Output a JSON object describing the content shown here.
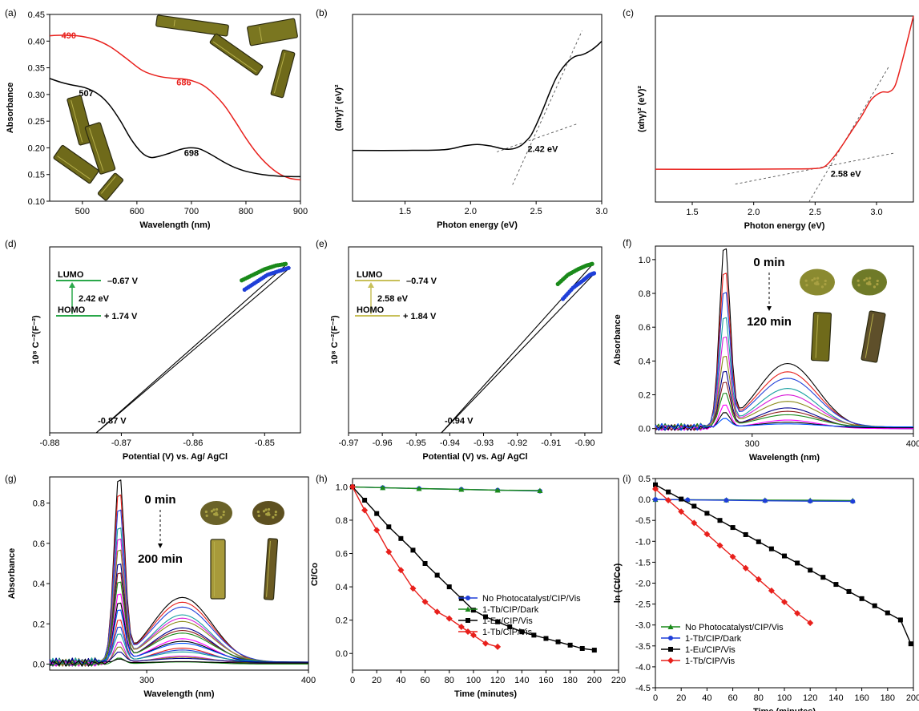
{
  "chart_data": [
    {
      "id": "a",
      "panel_label": "(a)",
      "type": "line",
      "xlabel": "Wavelength (nm)",
      "ylabel": "Absorbance",
      "xlim": [
        440,
        900
      ],
      "ylim": [
        0.1,
        0.45
      ],
      "xticks": [
        "500",
        "600",
        "700",
        "800",
        "900"
      ],
      "yticks": [
        "0.10",
        "0.15",
        "0.20",
        "0.25",
        "0.30",
        "0.35",
        "0.40",
        "0.45"
      ],
      "series": [
        {
          "color": "#e8201c",
          "x": [
            440,
            460,
            490,
            520,
            550,
            580,
            610,
            640,
            670,
            686,
            700,
            720,
            740,
            760,
            780,
            800,
            820,
            840,
            860,
            880,
            900
          ],
          "y": [
            0.41,
            0.411,
            0.41,
            0.404,
            0.39,
            0.368,
            0.345,
            0.334,
            0.33,
            0.329,
            0.326,
            0.318,
            0.302,
            0.28,
            0.25,
            0.218,
            0.19,
            0.168,
            0.152,
            0.143,
            0.14
          ]
        },
        {
          "color": "#000000",
          "x": [
            440,
            460,
            480,
            507,
            530,
            550,
            570,
            590,
            610,
            625,
            640,
            660,
            680,
            698,
            715,
            735,
            760,
            780,
            800,
            830,
            860,
            900
          ],
          "y": [
            0.33,
            0.323,
            0.318,
            0.312,
            0.3,
            0.28,
            0.25,
            0.215,
            0.19,
            0.182,
            0.184,
            0.19,
            0.197,
            0.2,
            0.198,
            0.188,
            0.173,
            0.163,
            0.156,
            0.15,
            0.147,
            0.146
          ]
        }
      ],
      "annotations": [
        {
          "text": "490",
          "x": 475,
          "y": 0.405,
          "color": "#e8201c"
        },
        {
          "text": "686",
          "x": 686,
          "y": 0.317,
          "color": "#e8201c"
        },
        {
          "text": "507",
          "x": 507,
          "y": 0.297,
          "color": "#000000"
        },
        {
          "text": "698",
          "x": 700,
          "y": 0.185,
          "color": "#000000"
        }
      ]
    },
    {
      "id": "b",
      "panel_label": "(b)",
      "type": "line",
      "xlabel": "Photon energy (eV)",
      "ylabel": "(αhγ)² (eV)²",
      "xlim": [
        1.1,
        3.0
      ],
      "ylim": [
        0,
        1.25
      ],
      "xticks": [
        "1.5",
        "2.0",
        "2.5",
        "3.0"
      ],
      "series": [
        {
          "color": "#000000",
          "x": [
            1.1,
            1.5,
            1.8,
            1.95,
            2.05,
            2.15,
            2.25,
            2.32,
            2.38,
            2.42,
            2.46,
            2.5,
            2.55,
            2.6,
            2.65,
            2.7,
            2.75,
            2.8,
            2.85,
            2.9,
            2.95,
            3.0
          ],
          "y": [
            0.34,
            0.34,
            0.345,
            0.37,
            0.38,
            0.37,
            0.35,
            0.35,
            0.37,
            0.4,
            0.44,
            0.51,
            0.61,
            0.72,
            0.82,
            0.89,
            0.94,
            0.97,
            0.98,
            1.0,
            1.03,
            1.07
          ]
        }
      ],
      "fit_lines": [
        {
          "x": [
            2.2,
            2.82
          ],
          "y": [
            0.33,
            0.52
          ]
        },
        {
          "x": [
            2.32,
            2.85
          ],
          "y": [
            0.11,
            1.14
          ]
        }
      ],
      "annotations": [
        {
          "text": "2.42 eV",
          "x": 2.55,
          "y": 0.33
        }
      ]
    },
    {
      "id": "c",
      "panel_label": "(c)",
      "type": "line",
      "xlabel": "Photon energy (eV)",
      "ylabel": "(αhγ)² (eV)²",
      "xlim": [
        1.2,
        3.3
      ],
      "ylim": [
        0,
        1.25
      ],
      "xticks": [
        "1.5",
        "2.0",
        "2.5",
        "3.0"
      ],
      "series": [
        {
          "color": "#e8201c",
          "x": [
            1.2,
            1.8,
            2.3,
            2.5,
            2.58,
            2.65,
            2.72,
            2.8,
            2.88,
            2.95,
            3.0,
            3.05,
            3.1,
            3.15,
            3.2,
            3.25,
            3.3
          ],
          "y": [
            0.22,
            0.22,
            0.222,
            0.225,
            0.24,
            0.3,
            0.38,
            0.48,
            0.58,
            0.68,
            0.72,
            0.74,
            0.74,
            0.78,
            0.92,
            1.08,
            1.25
          ]
        }
      ],
      "fit_lines": [
        {
          "x": [
            1.85,
            3.15
          ],
          "y": [
            0.12,
            0.33
          ]
        },
        {
          "x": [
            2.45,
            3.1
          ],
          "y": [
            0.0,
            0.91
          ]
        }
      ],
      "annotations": [
        {
          "text": "2.58 eV",
          "x": 2.75,
          "y": 0.17
        }
      ]
    },
    {
      "id": "d",
      "panel_label": "(d)",
      "type": "line",
      "xlabel": "Potential (V) vs. Ag/ AgCl",
      "ylabel": "10⁸ C⁻²(F⁻²)",
      "xlim": [
        -0.88,
        -0.845
      ],
      "ylim": [
        0,
        1
      ],
      "xticks": [
        "-0.88",
        "-0.87",
        "-0.86",
        "-0.85"
      ],
      "series": [
        {
          "color": "#1a8a1a",
          "x": [
            -0.8532,
            -0.8516,
            -0.85,
            -0.8484,
            -0.8468
          ],
          "y": [
            0.82,
            0.85,
            0.88,
            0.9,
            0.91
          ]
        },
        {
          "color": "#1f3fd8",
          "x": [
            -0.8528,
            -0.8512,
            -0.8496,
            -0.848,
            -0.8464
          ],
          "y": [
            0.77,
            0.81,
            0.85,
            0.87,
            0.89
          ]
        }
      ],
      "fit_lines": [
        {
          "x": [
            -0.8735,
            -0.8468
          ],
          "y": [
            0.0,
            0.91
          ]
        },
        {
          "x": [
            -0.8735,
            -0.8464
          ],
          "y": [
            0.0,
            0.89
          ]
        }
      ],
      "annotations": [
        {
          "text": "-0.87 V",
          "x": -0.8735,
          "y": 0.05
        },
        {
          "text": "LUMO",
          "x": -0.8775,
          "y": 0.82
        },
        {
          "text": "–0.67 V",
          "x": -0.8738,
          "y": 0.8
        },
        {
          "text": "2.42 eV",
          "x": -0.876,
          "y": 0.72
        },
        {
          "text": "HOMO",
          "x": -0.8775,
          "y": 0.66
        },
        {
          "text": "+ 1.74 V",
          "x": -0.874,
          "y": 0.62
        }
      ]
    },
    {
      "id": "e",
      "panel_label": "(e)",
      "type": "line",
      "xlabel": "Potential (V) vs. Ag/ AgCl",
      "ylabel": "10⁸ C⁻²(F⁻²)",
      "xlim": [
        -0.97,
        -0.895
      ],
      "ylim": [
        0,
        1
      ],
      "xticks": [
        "-0.97",
        "-0.96",
        "-0.95",
        "-0.94",
        "-0.93",
        "-0.92",
        "-0.91",
        "-0.90"
      ],
      "series": [
        {
          "color": "#1a8a1a",
          "x": [
            -0.908,
            -0.905,
            -0.902,
            -0.8995,
            -0.8975
          ],
          "y": [
            0.8,
            0.85,
            0.88,
            0.9,
            0.91
          ]
        },
        {
          "color": "#1f3fd8",
          "x": [
            -0.9065,
            -0.9035,
            -0.9005,
            -0.8985,
            -0.897
          ],
          "y": [
            0.72,
            0.78,
            0.82,
            0.85,
            0.86
          ]
        }
      ],
      "fit_lines": [
        {
          "x": [
            -0.9425,
            -0.8975
          ],
          "y": [
            0.0,
            0.91
          ]
        },
        {
          "x": [
            -0.9425,
            -0.897
          ],
          "y": [
            0.0,
            0.86
          ]
        }
      ],
      "annotations": [
        {
          "text": "-0.94 V",
          "x": -0.942,
          "y": 0.05
        },
        {
          "text": "LUMO",
          "x": -0.9665,
          "y": 0.82
        },
        {
          "text": "–0.74 V",
          "x": -0.958,
          "y": 0.8
        },
        {
          "text": "2.58 eV",
          "x": -0.962,
          "y": 0.72
        },
        {
          "text": "HOMO",
          "x": -0.9665,
          "y": 0.64
        },
        {
          "text": "+ 1.84 V",
          "x": -0.958,
          "y": 0.6
        }
      ]
    },
    {
      "id": "f",
      "panel_label": "(f)",
      "type": "line",
      "xlabel": "Wavelength (nm)",
      "ylabel": "Absorbance",
      "xlim": [
        240,
        400
      ],
      "ylim": [
        -0.03,
        1.08
      ],
      "xticks": [
        "300",
        "400"
      ],
      "yticks": [
        "0.0",
        "0.2",
        "0.4",
        "0.6",
        "0.8",
        "1.0"
      ],
      "peak_values": [
        1.07,
        0.92,
        0.8,
        0.66,
        0.54,
        0.42,
        0.34,
        0.27,
        0.2,
        0.14,
        0.09,
        0.05
      ],
      "series_colors": [
        "#000000",
        "#e8201c",
        "#1f3fd8",
        "#17a0a0",
        "#d81ad8",
        "#8a8a1a",
        "#00008b",
        "#8b1a1a",
        "#1a8a1a",
        "#ff00ff",
        "#000000",
        "#0050ff"
      ],
      "annotations": [
        {
          "text": "0 min"
        },
        {
          "text": "120 min"
        }
      ]
    },
    {
      "id": "g",
      "panel_label": "(g)",
      "type": "line",
      "xlabel": "Wavelength (nm)",
      "ylabel": "Absorbance",
      "xlim": [
        240,
        400
      ],
      "ylim": [
        -0.03,
        0.93
      ],
      "xticks": [
        "300",
        "400"
      ],
      "yticks": [
        "0.0",
        "0.2",
        "0.4",
        "0.6",
        "0.8"
      ],
      "peak_values": [
        0.92,
        0.84,
        0.76,
        0.68,
        0.62,
        0.56,
        0.5,
        0.45,
        0.4,
        0.35,
        0.3,
        0.26,
        0.22,
        0.18,
        0.14,
        0.11,
        0.08,
        0.05,
        0.03,
        0.02
      ],
      "series_colors": [
        "#000000",
        "#e8201c",
        "#1f3fd8",
        "#17a0a0",
        "#d81ad8",
        "#8a8a1a",
        "#00008b",
        "#8b1a1a",
        "#1a8a1a",
        "#ff00ff",
        "#000000",
        "#0050ff",
        "#e8201c",
        "#1f3fd8",
        "#17a0a0",
        "#d81ad8",
        "#8a8a1a",
        "#00008b",
        "#1a8a1a",
        "#000000"
      ],
      "annotations": [
        {
          "text": "0 min"
        },
        {
          "text": "200 min"
        }
      ]
    },
    {
      "id": "h",
      "panel_label": "(h)",
      "type": "line",
      "xlabel": "Time (minutes)",
      "ylabel": "Ct/Co",
      "xlim": [
        0,
        220
      ],
      "ylim": [
        -0.1,
        1.05
      ],
      "xticks": [
        "0",
        "20",
        "40",
        "60",
        "80",
        "100",
        "120",
        "140",
        "160",
        "180",
        "200",
        "220"
      ],
      "yticks": [
        "0.0",
        "0.2",
        "0.4",
        "0.6",
        "0.8",
        "1.0"
      ],
      "legend_position": "lower-right",
      "series": [
        {
          "name": "No Photocatalyst/CIP/Vis",
          "color": "#1f3fd8",
          "marker": "circle",
          "x": [
            0,
            25,
            55,
            90,
            120,
            155
          ],
          "y": [
            1.0,
            0.995,
            0.99,
            0.985,
            0.98,
            0.975
          ]
        },
        {
          "name": "1-Tb/CIP/Dark",
          "color": "#1a8a1a",
          "marker": "triangle",
          "x": [
            0,
            25,
            55,
            90,
            120,
            155
          ],
          "y": [
            1.0,
            0.995,
            0.99,
            0.985,
            0.98,
            0.978
          ]
        },
        {
          "name": "1-Eu/CIP/Vis",
          "color": "#000000",
          "marker": "square",
          "x": [
            0,
            10,
            20,
            30,
            40,
            50,
            60,
            70,
            80,
            90,
            100,
            110,
            120,
            130,
            140,
            150,
            160,
            170,
            180,
            190,
            200
          ],
          "y": [
            1.0,
            0.92,
            0.84,
            0.76,
            0.69,
            0.62,
            0.54,
            0.47,
            0.4,
            0.33,
            0.26,
            0.22,
            0.19,
            0.16,
            0.13,
            0.11,
            0.09,
            0.07,
            0.05,
            0.03,
            0.02
          ]
        },
        {
          "name": "1-Tb/CIP/Vis",
          "color": "#e8201c",
          "marker": "diamond",
          "x": [
            0,
            10,
            20,
            30,
            40,
            50,
            60,
            70,
            80,
            90,
            100,
            110,
            120
          ],
          "y": [
            1.0,
            0.86,
            0.74,
            0.61,
            0.5,
            0.39,
            0.31,
            0.25,
            0.21,
            0.16,
            0.11,
            0.06,
            0.04
          ]
        }
      ]
    },
    {
      "id": "i",
      "panel_label": "(i)",
      "type": "line",
      "xlabel": "Time (minutes)",
      "ylabel": "ln (Ct/Co)",
      "xlim": [
        0,
        200
      ],
      "ylim": [
        -4.5,
        0.5
      ],
      "xticks": [
        "0",
        "20",
        "40",
        "60",
        "80",
        "100",
        "120",
        "140",
        "160",
        "180",
        "200"
      ],
      "yticks": [
        "0.5",
        "0.0",
        "-0.5",
        "-1.0",
        "-1.5",
        "-2.0",
        "-2.5",
        "-3.0",
        "-3.5",
        "-4.0",
        "-4.5"
      ],
      "legend_position": "lower-left",
      "series": [
        {
          "name": "No Photocatalyst/CIP/Vis",
          "color": "#1a8a1a",
          "marker": "triangle",
          "x": [
            0,
            25,
            55,
            85,
            120,
            153
          ],
          "y": [
            0.0,
            -0.005,
            -0.01,
            -0.015,
            -0.02,
            -0.025
          ]
        },
        {
          "name": "1-Tb/CIP/Dark",
          "color": "#1f3fd8",
          "marker": "circle",
          "x": [
            0,
            25,
            55,
            85,
            120,
            153
          ],
          "y": [
            0.0,
            -0.01,
            -0.02,
            -0.03,
            -0.04,
            -0.045
          ]
        },
        {
          "name": "1-Eu/CIP/Vis",
          "color": "#000000",
          "marker": "square",
          "x": [
            0,
            10,
            20,
            30,
            40,
            50,
            60,
            70,
            80,
            90,
            100,
            110,
            120,
            130,
            140,
            150,
            160,
            170,
            180,
            190,
            198
          ],
          "y": [
            0.35,
            0.18,
            0.01,
            -0.16,
            -0.33,
            -0.5,
            -0.67,
            -0.84,
            -1.01,
            -1.18,
            -1.35,
            -1.52,
            -1.69,
            -1.86,
            -2.03,
            -2.2,
            -2.37,
            -2.54,
            -2.71,
            -2.88,
            -3.45
          ]
        },
        {
          "name": "1-Tb/CIP/Vis",
          "color": "#e8201c",
          "marker": "diamond",
          "x": [
            0,
            10,
            20,
            30,
            40,
            50,
            60,
            70,
            80,
            90,
            100,
            110,
            120
          ],
          "y": [
            0.25,
            -0.02,
            -0.29,
            -0.56,
            -0.83,
            -1.1,
            -1.37,
            -1.64,
            -1.91,
            -2.18,
            -2.45,
            -2.72,
            -2.95
          ]
        }
      ]
    }
  ]
}
